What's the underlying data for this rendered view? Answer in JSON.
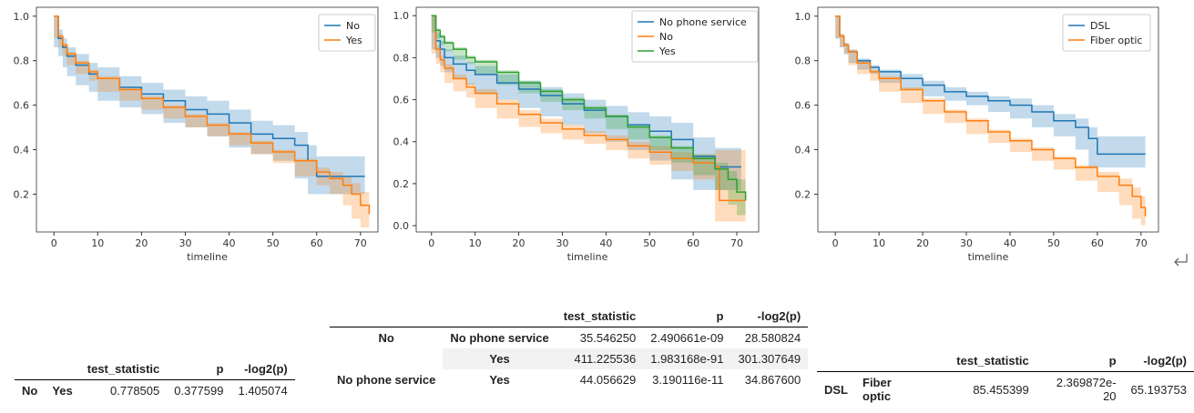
{
  "chart_data": [
    {
      "type": "line",
      "xlabel": "timeline",
      "xlim": [
        -4,
        74
      ],
      "ylim": [
        0.03,
        1.04
      ],
      "xticks": [
        0,
        10,
        20,
        30,
        40,
        50,
        60,
        70
      ],
      "yticks": [
        0.2,
        0.4,
        0.6,
        0.8,
        1.0
      ],
      "ytick_labels": [
        "0.2",
        "0.4",
        "0.6",
        "0.8",
        "1.0"
      ],
      "legend_position": "top-right",
      "colors": [
        "#1f77b4",
        "#ff7f0e"
      ],
      "series": [
        {
          "name": "No",
          "x": [
            0,
            1,
            2,
            3,
            5,
            8,
            10,
            15,
            20,
            25,
            30,
            35,
            40,
            45,
            50,
            55,
            58,
            60,
            65,
            71
          ],
          "y": [
            1.0,
            0.9,
            0.86,
            0.82,
            0.78,
            0.74,
            0.72,
            0.68,
            0.65,
            0.62,
            0.58,
            0.56,
            0.52,
            0.47,
            0.45,
            0.42,
            0.35,
            0.28,
            0.28,
            0.28
          ],
          "ci_low": [
            1.0,
            0.86,
            0.82,
            0.77,
            0.73,
            0.69,
            0.66,
            0.62,
            0.59,
            0.56,
            0.52,
            0.5,
            0.46,
            0.41,
            0.38,
            0.35,
            0.27,
            0.2,
            0.2,
            0.2
          ],
          "ci_high": [
            1.0,
            0.94,
            0.9,
            0.86,
            0.83,
            0.79,
            0.77,
            0.73,
            0.7,
            0.67,
            0.64,
            0.62,
            0.58,
            0.53,
            0.51,
            0.48,
            0.42,
            0.37,
            0.37,
            0.37
          ]
        },
        {
          "name": "Yes",
          "x": [
            0,
            1,
            2,
            3,
            5,
            8,
            10,
            15,
            20,
            25,
            30,
            35,
            40,
            45,
            50,
            55,
            60,
            63,
            66,
            68,
            70,
            72
          ],
          "y": [
            1.0,
            0.91,
            0.87,
            0.83,
            0.79,
            0.75,
            0.72,
            0.67,
            0.63,
            0.59,
            0.55,
            0.51,
            0.47,
            0.43,
            0.39,
            0.35,
            0.3,
            0.27,
            0.24,
            0.2,
            0.15,
            0.11
          ],
          "ci_low": [
            1.0,
            0.9,
            0.86,
            0.82,
            0.78,
            0.74,
            0.71,
            0.66,
            0.62,
            0.58,
            0.54,
            0.5,
            0.46,
            0.42,
            0.38,
            0.34,
            0.28,
            0.24,
            0.2,
            0.15,
            0.09,
            0.05
          ],
          "ci_high": [
            1.0,
            0.92,
            0.88,
            0.84,
            0.8,
            0.76,
            0.73,
            0.68,
            0.64,
            0.6,
            0.56,
            0.52,
            0.48,
            0.44,
            0.4,
            0.36,
            0.32,
            0.3,
            0.28,
            0.25,
            0.21,
            0.18
          ]
        }
      ]
    },
    {
      "type": "line",
      "xlabel": "timeline",
      "xlim": [
        -3.5,
        75
      ],
      "ylim": [
        -0.03,
        1.04
      ],
      "xticks": [
        0,
        10,
        20,
        30,
        40,
        50,
        60,
        70
      ],
      "yticks": [
        0.0,
        0.2,
        0.4,
        0.6,
        0.8,
        1.0
      ],
      "ytick_labels": [
        "0.0",
        "0.2",
        "0.4",
        "0.6",
        "0.8",
        "1.0"
      ],
      "legend_position": "top-right",
      "colors": [
        "#1f77b4",
        "#ff7f0e",
        "#2ca02c"
      ],
      "series": [
        {
          "name": "No phone service",
          "x": [
            0,
            1,
            2,
            3,
            5,
            8,
            10,
            15,
            20,
            25,
            30,
            35,
            40,
            45,
            50,
            55,
            60,
            65,
            71
          ],
          "y": [
            1.0,
            0.88,
            0.84,
            0.8,
            0.77,
            0.74,
            0.72,
            0.68,
            0.65,
            0.62,
            0.58,
            0.55,
            0.52,
            0.48,
            0.45,
            0.41,
            0.33,
            0.28,
            0.28
          ],
          "ci_low": [
            1.0,
            0.84,
            0.8,
            0.76,
            0.73,
            0.7,
            0.67,
            0.63,
            0.6,
            0.56,
            0.52,
            0.48,
            0.44,
            0.4,
            0.36,
            0.31,
            0.22,
            0.17,
            0.17
          ],
          "ci_high": [
            1.0,
            0.92,
            0.88,
            0.84,
            0.81,
            0.78,
            0.76,
            0.72,
            0.69,
            0.66,
            0.63,
            0.6,
            0.57,
            0.54,
            0.52,
            0.49,
            0.42,
            0.37,
            0.37
          ]
        },
        {
          "name": "No",
          "x": [
            0,
            1,
            2,
            3,
            5,
            8,
            10,
            15,
            20,
            25,
            30,
            35,
            40,
            45,
            50,
            55,
            60,
            65,
            66,
            70,
            72
          ],
          "y": [
            1.0,
            0.84,
            0.79,
            0.75,
            0.7,
            0.66,
            0.63,
            0.58,
            0.53,
            0.49,
            0.46,
            0.43,
            0.41,
            0.38,
            0.35,
            0.32,
            0.3,
            0.28,
            0.12,
            0.12,
            0.12
          ],
          "ci_low": [
            1.0,
            0.82,
            0.77,
            0.73,
            0.68,
            0.64,
            0.61,
            0.56,
            0.51,
            0.47,
            0.44,
            0.41,
            0.39,
            0.36,
            0.32,
            0.29,
            0.26,
            0.22,
            0.02,
            0.02,
            0.02
          ],
          "ci_high": [
            1.0,
            0.86,
            0.81,
            0.77,
            0.72,
            0.68,
            0.65,
            0.6,
            0.55,
            0.51,
            0.48,
            0.45,
            0.43,
            0.4,
            0.38,
            0.35,
            0.34,
            0.36,
            0.36,
            0.36,
            0.36
          ]
        },
        {
          "name": "Yes",
          "x": [
            0,
            1,
            2,
            3,
            5,
            8,
            10,
            15,
            20,
            25,
            30,
            35,
            40,
            45,
            50,
            55,
            60,
            65,
            68,
            70,
            72
          ],
          "y": [
            1.0,
            0.93,
            0.9,
            0.87,
            0.84,
            0.8,
            0.78,
            0.73,
            0.68,
            0.64,
            0.6,
            0.56,
            0.52,
            0.47,
            0.42,
            0.37,
            0.32,
            0.27,
            0.22,
            0.16,
            0.12
          ],
          "ci_low": [
            1.0,
            0.92,
            0.89,
            0.86,
            0.83,
            0.79,
            0.77,
            0.72,
            0.67,
            0.63,
            0.59,
            0.55,
            0.51,
            0.46,
            0.41,
            0.36,
            0.3,
            0.24,
            0.17,
            0.1,
            0.05
          ],
          "ci_high": [
            1.0,
            0.94,
            0.91,
            0.88,
            0.85,
            0.81,
            0.79,
            0.74,
            0.69,
            0.65,
            0.61,
            0.57,
            0.53,
            0.48,
            0.43,
            0.38,
            0.34,
            0.3,
            0.26,
            0.22,
            0.19
          ]
        }
      ]
    },
    {
      "type": "line",
      "xlabel": "timeline",
      "xlim": [
        -4,
        74
      ],
      "ylim": [
        0.03,
        1.04
      ],
      "xticks": [
        0,
        10,
        20,
        30,
        40,
        50,
        60,
        70
      ],
      "yticks": [
        0.2,
        0.4,
        0.6,
        0.8,
        1.0
      ],
      "ytick_labels": [
        "0.2",
        "0.4",
        "0.6",
        "0.8",
        "1.0"
      ],
      "legend_position": "top-right",
      "colors": [
        "#1f77b4",
        "#ff7f0e"
      ],
      "series": [
        {
          "name": "DSL",
          "x": [
            0,
            1,
            2,
            3,
            5,
            8,
            10,
            15,
            20,
            25,
            30,
            35,
            40,
            45,
            50,
            55,
            58,
            60,
            65,
            71
          ],
          "y": [
            1.0,
            0.91,
            0.87,
            0.84,
            0.8,
            0.77,
            0.75,
            0.72,
            0.69,
            0.66,
            0.64,
            0.62,
            0.6,
            0.57,
            0.53,
            0.5,
            0.45,
            0.38,
            0.38,
            0.38
          ],
          "ci_low": [
            1.0,
            0.9,
            0.86,
            0.83,
            0.79,
            0.76,
            0.74,
            0.7,
            0.67,
            0.64,
            0.62,
            0.6,
            0.57,
            0.54,
            0.5,
            0.46,
            0.4,
            0.32,
            0.32,
            0.32
          ],
          "ci_high": [
            1.0,
            0.92,
            0.88,
            0.85,
            0.81,
            0.78,
            0.76,
            0.74,
            0.71,
            0.68,
            0.66,
            0.64,
            0.63,
            0.6,
            0.56,
            0.54,
            0.5,
            0.46,
            0.46,
            0.46
          ]
        },
        {
          "name": "Fiber optic",
          "x": [
            0,
            1,
            2,
            3,
            5,
            8,
            10,
            15,
            20,
            25,
            30,
            35,
            40,
            45,
            50,
            55,
            60,
            65,
            68,
            70,
            71
          ],
          "y": [
            1.0,
            0.91,
            0.87,
            0.84,
            0.79,
            0.75,
            0.72,
            0.67,
            0.62,
            0.57,
            0.53,
            0.48,
            0.44,
            0.4,
            0.36,
            0.32,
            0.28,
            0.24,
            0.19,
            0.14,
            0.1
          ],
          "ci_low": [
            1.0,
            0.9,
            0.86,
            0.83,
            0.78,
            0.74,
            0.71,
            0.66,
            0.61,
            0.56,
            0.52,
            0.47,
            0.43,
            0.39,
            0.35,
            0.31,
            0.26,
            0.21,
            0.15,
            0.09,
            0.06
          ],
          "ci_high": [
            1.0,
            0.92,
            0.88,
            0.85,
            0.8,
            0.76,
            0.73,
            0.68,
            0.63,
            0.58,
            0.54,
            0.49,
            0.45,
            0.41,
            0.37,
            0.33,
            0.3,
            0.27,
            0.23,
            0.19,
            0.15
          ]
        }
      ]
    }
  ],
  "tables": {
    "t1": {
      "columns": [
        "test_statistic",
        "p",
        "-log2(p)"
      ],
      "rows": [
        {
          "idx1": "No",
          "idx2": "Yes",
          "test_statistic": "0.778505",
          "p": "0.377599",
          "neglog2p": "1.405074"
        }
      ]
    },
    "t2": {
      "columns": [
        "test_statistic",
        "p",
        "-log2(p)"
      ],
      "rows": [
        {
          "idx1": "No",
          "idx2": "No phone service",
          "test_statistic": "35.546250",
          "p": "2.490661e-09",
          "neglog2p": "28.580824"
        },
        {
          "idx1": "",
          "idx2": "Yes",
          "test_statistic": "411.225536",
          "p": "1.983168e-91",
          "neglog2p": "301.307649"
        },
        {
          "idx1": "No phone service",
          "idx2": "Yes",
          "test_statistic": "44.056629",
          "p": "3.190116e-11",
          "neglog2p": "34.867600"
        }
      ]
    },
    "t3": {
      "columns": [
        "test_statistic",
        "p",
        "-log2(p)"
      ],
      "rows": [
        {
          "idx1": "DSL",
          "idx2": "Fiber optic",
          "test_statistic": "85.455399",
          "p": "2.369872e-20",
          "neglog2p": "65.193753"
        }
      ]
    }
  },
  "icons": {
    "return_icon": "return-arrow-icon"
  }
}
